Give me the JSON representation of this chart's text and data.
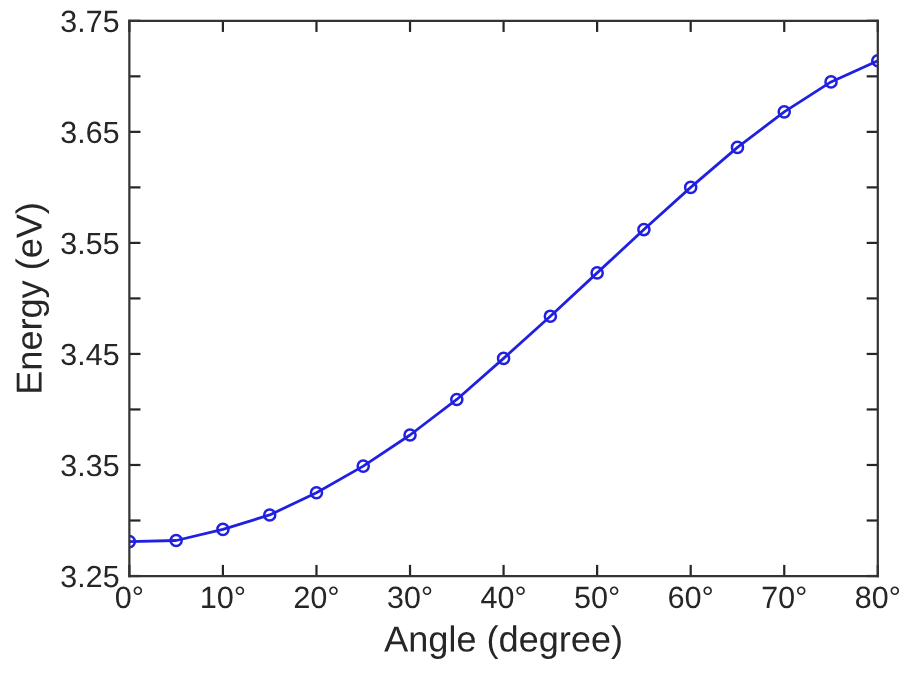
{
  "chart_data": {
    "type": "line",
    "xlabel": "Angle (degree)",
    "ylabel": "Energy (eV)",
    "x": [
      0,
      5,
      10,
      15,
      20,
      25,
      30,
      35,
      40,
      45,
      50,
      55,
      60,
      65,
      70,
      75,
      80
    ],
    "series": [
      {
        "color": "#2020e0",
        "values": [
          3.281,
          3.282,
          3.292,
          3.305,
          3.325,
          3.349,
          3.377,
          3.409,
          3.446,
          3.484,
          3.523,
          3.562,
          3.6,
          3.636,
          3.668,
          3.695,
          3.714
        ]
      }
    ],
    "xlim": [
      0,
      80
    ],
    "xticks": [
      {
        "value": 0,
        "label": "0°"
      },
      {
        "value": 10,
        "label": "10°"
      },
      {
        "value": 20,
        "label": "20°"
      },
      {
        "value": 30,
        "label": "30°"
      },
      {
        "value": 40,
        "label": "40°"
      },
      {
        "value": 50,
        "label": "50°"
      },
      {
        "value": 60,
        "label": "60°"
      },
      {
        "value": 70,
        "label": "70°"
      },
      {
        "value": 80,
        "label": "80°"
      }
    ],
    "ylim": [
      3.25,
      3.75
    ],
    "yticks": [
      3.25,
      {
        "value": 3.3,
        "label": null
      },
      3.35,
      {
        "value": 3.4,
        "label": null
      },
      3.45,
      {
        "value": 3.5,
        "label": null
      },
      3.55,
      {
        "value": 3.6,
        "label": null
      },
      3.65,
      {
        "value": 3.7,
        "label": null
      },
      3.75
    ],
    "marker": "circle",
    "line_style": "solid",
    "grid": false
  }
}
